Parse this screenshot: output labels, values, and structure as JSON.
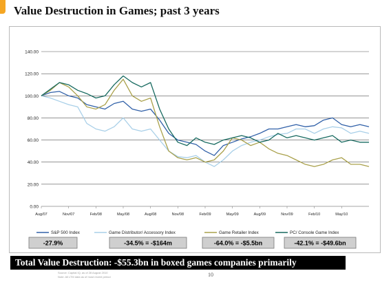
{
  "page": {
    "title": "Value Destruction in Games; past 3 years",
    "summary": "Total Value Destruction: -$55.3bn in boxed games companies primarily",
    "fine_print": [
      "Source: Capital IQ, as of 28 August 2010",
      "Note: All LTM data as of most recent period"
    ],
    "page_number": "10"
  },
  "colors": {
    "sp500": "#3060a8",
    "distributor": "#a8cfe8",
    "retailer": "#a9a04a",
    "pc_console": "#16695f",
    "box_fill": "#cfcfcf",
    "summary_bg": "#000000"
  },
  "chart_data": {
    "type": "line",
    "title": "",
    "xlabel": "",
    "ylabel": "",
    "ylim": [
      0,
      140
    ],
    "yticks": [
      "0.00",
      "20.00",
      "40.00",
      "60.00",
      "80.00",
      "100.00",
      "120.00",
      "140.00"
    ],
    "xticks": [
      "Aug/07",
      "Nov/07",
      "Feb/08",
      "May/08",
      "Aug/08",
      "Nov/08",
      "Feb/09",
      "May/09",
      "Aug/09",
      "Nov/09",
      "Feb/10",
      "May/10"
    ],
    "grid": true,
    "legend_position": "bottom",
    "x": [
      "Aug/07",
      "Sep/07",
      "Oct/07",
      "Nov/07",
      "Dec/07",
      "Jan/08",
      "Feb/08",
      "Mar/08",
      "Apr/08",
      "May/08",
      "Jun/08",
      "Jul/08",
      "Aug/08",
      "Sep/08",
      "Oct/08",
      "Nov/08",
      "Dec/08",
      "Jan/09",
      "Feb/09",
      "Mar/09",
      "Apr/09",
      "May/09",
      "Jun/09",
      "Jul/09",
      "Aug/09",
      "Sep/09",
      "Oct/09",
      "Nov/09",
      "Dec/09",
      "Jan/10",
      "Feb/10",
      "Mar/10",
      "Apr/10",
      "May/10",
      "Jun/10",
      "Jul/10",
      "Aug/10"
    ],
    "series": [
      {
        "name": "S&P 500 Index",
        "change": "-27.9%",
        "color_key": "sp500",
        "values": [
          100,
          103,
          104,
          100,
          98,
          92,
          90,
          88,
          93,
          95,
          88,
          86,
          88,
          78,
          66,
          60,
          58,
          56,
          50,
          46,
          55,
          58,
          61,
          63,
          66,
          70,
          70,
          72,
          74,
          72,
          73,
          78,
          80,
          74,
          72,
          74,
          72
        ]
      },
      {
        "name": "Game Distributor/ Accessory Index",
        "change": "-34.5% = -$164m",
        "color_key": "distributor",
        "values": [
          100,
          98,
          95,
          92,
          90,
          75,
          70,
          68,
          72,
          80,
          70,
          68,
          70,
          60,
          50,
          45,
          44,
          46,
          40,
          36,
          42,
          50,
          55,
          58,
          60,
          63,
          65,
          66,
          70,
          70,
          66,
          70,
          72,
          71,
          66,
          68,
          66
        ]
      },
      {
        "name": "Game Retailer Index",
        "change": "-64.0% = -$5.5bn",
        "color_key": "retailer",
        "values": [
          100,
          105,
          112,
          108,
          100,
          90,
          88,
          92,
          105,
          115,
          100,
          95,
          98,
          72,
          50,
          44,
          42,
          44,
          40,
          42,
          50,
          62,
          60,
          55,
          58,
          52,
          48,
          46,
          42,
          38,
          36,
          38,
          42,
          44,
          38,
          38,
          36
        ]
      },
      {
        "name": "PC/ Console Game Index",
        "change": "-42.1% = -$49.6bn",
        "color_key": "pc_console",
        "values": [
          100,
          106,
          112,
          110,
          105,
          102,
          98,
          100,
          110,
          118,
          112,
          108,
          112,
          88,
          70,
          58,
          55,
          62,
          58,
          56,
          60,
          62,
          64,
          62,
          58,
          60,
          66,
          62,
          64,
          62,
          60,
          62,
          64,
          58,
          60,
          58,
          58
        ]
      }
    ]
  }
}
